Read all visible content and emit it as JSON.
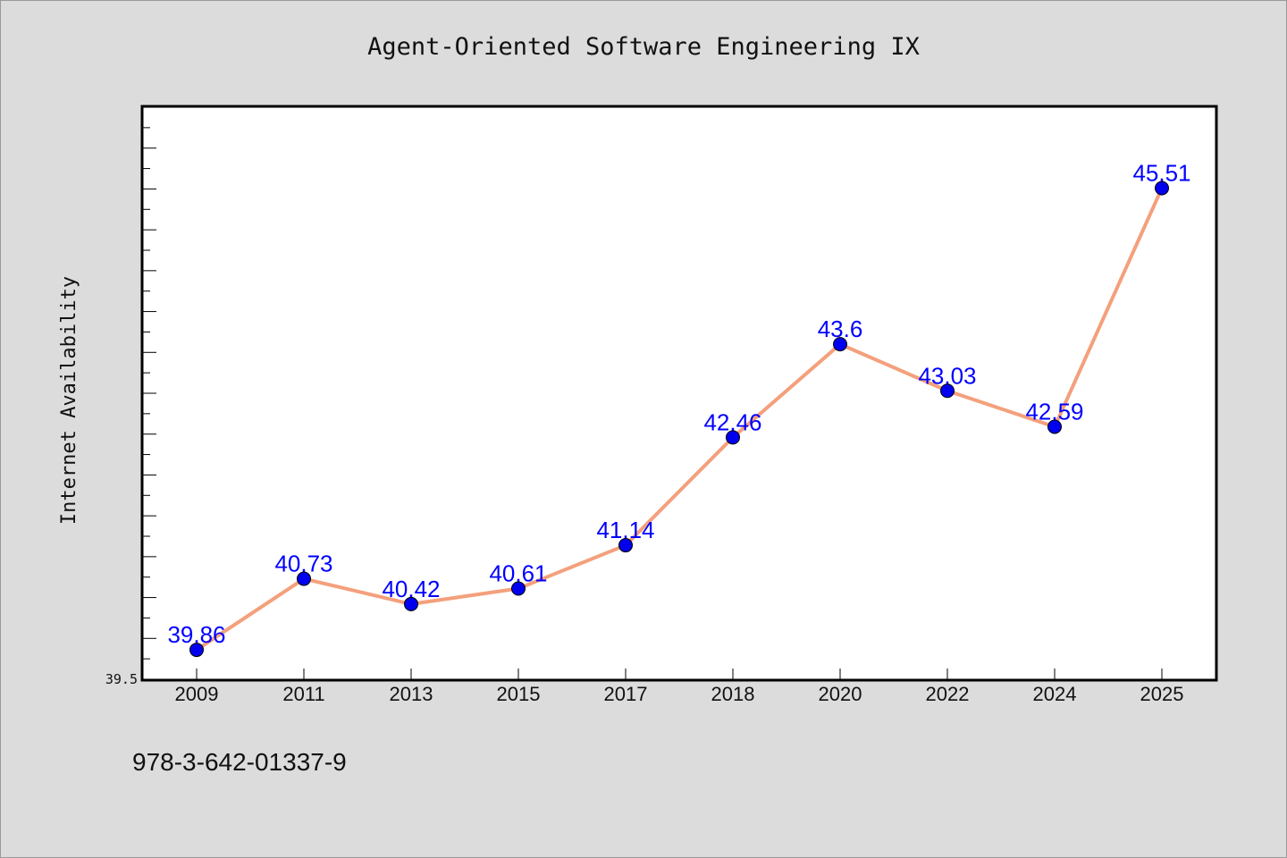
{
  "chart_data": {
    "type": "line",
    "title": "Agent-Oriented Software Engineering IX",
    "xlabel": "",
    "ylabel": "Internet Availability",
    "categories": [
      "2009",
      "2011",
      "2013",
      "2015",
      "2017",
      "2018",
      "2020",
      "2022",
      "2024",
      "2025"
    ],
    "series": [
      {
        "values": [
          39.86,
          40.73,
          40.42,
          40.61,
          41.14,
          42.46,
          43.6,
          43.03,
          42.59,
          45.51
        ],
        "labels": [
          "39.86",
          "40.73",
          "40.42",
          "40.61",
          "41.14",
          "42.46",
          "43.6",
          "43.03",
          "42.59",
          "45.51"
        ]
      }
    ],
    "ylim": [
      39.5,
      46.5
    ],
    "ytick_labels": [
      "39.5"
    ],
    "grid": false,
    "line_color": "#f4a07c",
    "marker_color": "#0000ee",
    "label_color": "#0000ff",
    "plot_background": "#ffffff",
    "page_background": "#dcdcdc"
  },
  "footnote": "978-3-642-01337-9"
}
